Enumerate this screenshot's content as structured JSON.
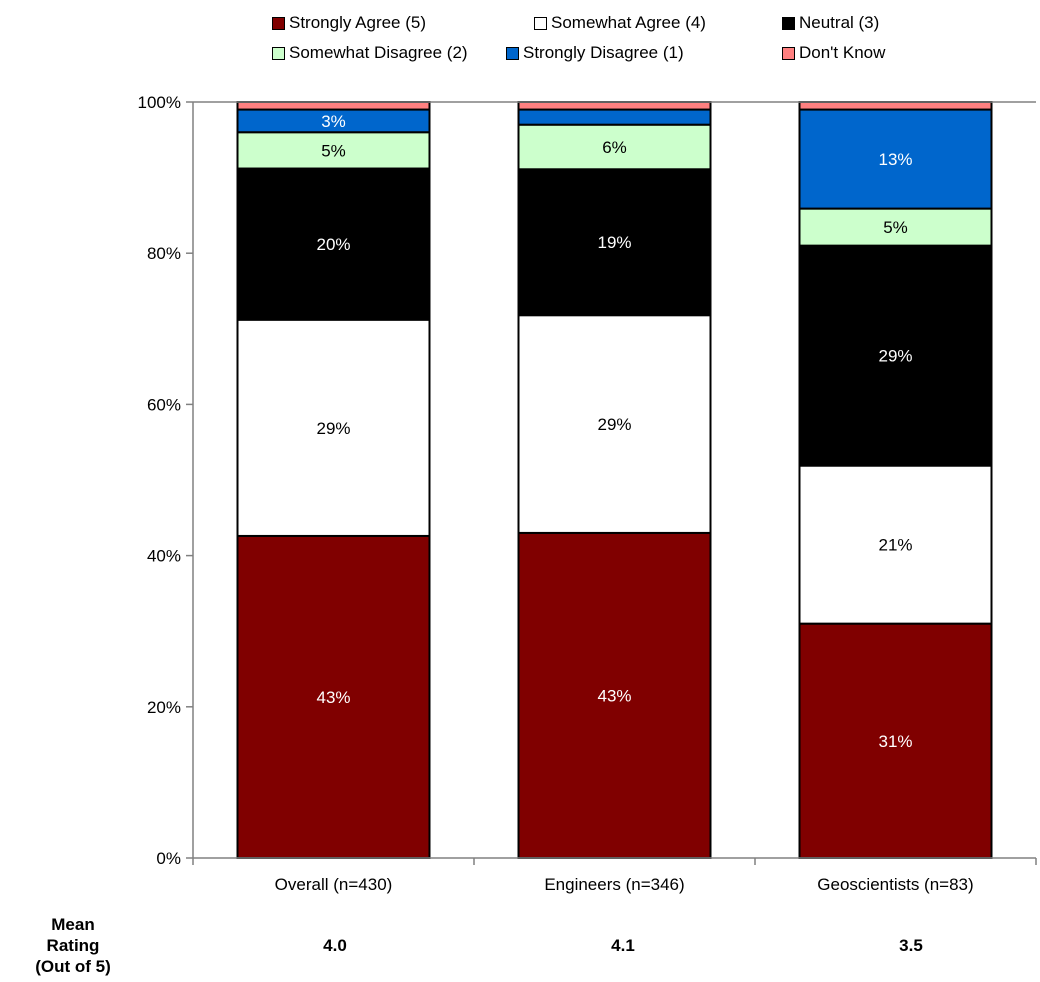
{
  "chart_data": {
    "type": "bar",
    "stacked": true,
    "categories": [
      "Overall (n=430)",
      "Engineers (n=346)",
      "Geoscientists (n=83)"
    ],
    "series": [
      {
        "name": "Strongly Agree (5)",
        "color": "#800000",
        "values": [
          42.6,
          43.0,
          31.0
        ],
        "labels": [
          "43%",
          "43%",
          "31%"
        ],
        "label_color": "#ffffff"
      },
      {
        "name": "Somewhat Agree (4)",
        "color": "#ffffff",
        "values": [
          28.6,
          28.8,
          20.9
        ],
        "labels": [
          "29%",
          "29%",
          "21%"
        ],
        "label_color": "#000000"
      },
      {
        "name": "Neutral (3)",
        "color": "#000000",
        "values": [
          20.0,
          19.3,
          29.1
        ],
        "labels": [
          "20%",
          "19%",
          "29%"
        ],
        "label_color": "#ffffff"
      },
      {
        "name": "Somewhat Disagree (2)",
        "color": "#ccffcc",
        "values": [
          4.8,
          5.9,
          4.9
        ],
        "labels": [
          "5%",
          "6%",
          "5%"
        ],
        "label_color": "#000000"
      },
      {
        "name": "Strongly Disagree (1)",
        "color": "#0066cc",
        "values": [
          3.0,
          2.0,
          13.1
        ],
        "labels": [
          "3%",
          "",
          "13%"
        ],
        "label_color": "#ffffff"
      },
      {
        "name": "Don't Know",
        "color": "#ff8080",
        "values": [
          1.0,
          1.0,
          1.0
        ],
        "labels": [
          "",
          "",
          ""
        ],
        "label_color": "#000000"
      }
    ],
    "ylim": [
      0,
      100
    ],
    "yticks": [
      "0%",
      "20%",
      "40%",
      "60%",
      "80%",
      "100%"
    ],
    "ytick_values": [
      0,
      20,
      40,
      60,
      80,
      100
    ],
    "grid": false,
    "legend_placement": "top"
  },
  "mean": {
    "title_lines": [
      "Mean",
      "Rating",
      "(Out of 5)"
    ],
    "values": [
      "4.0",
      "4.1",
      "3.5"
    ]
  }
}
